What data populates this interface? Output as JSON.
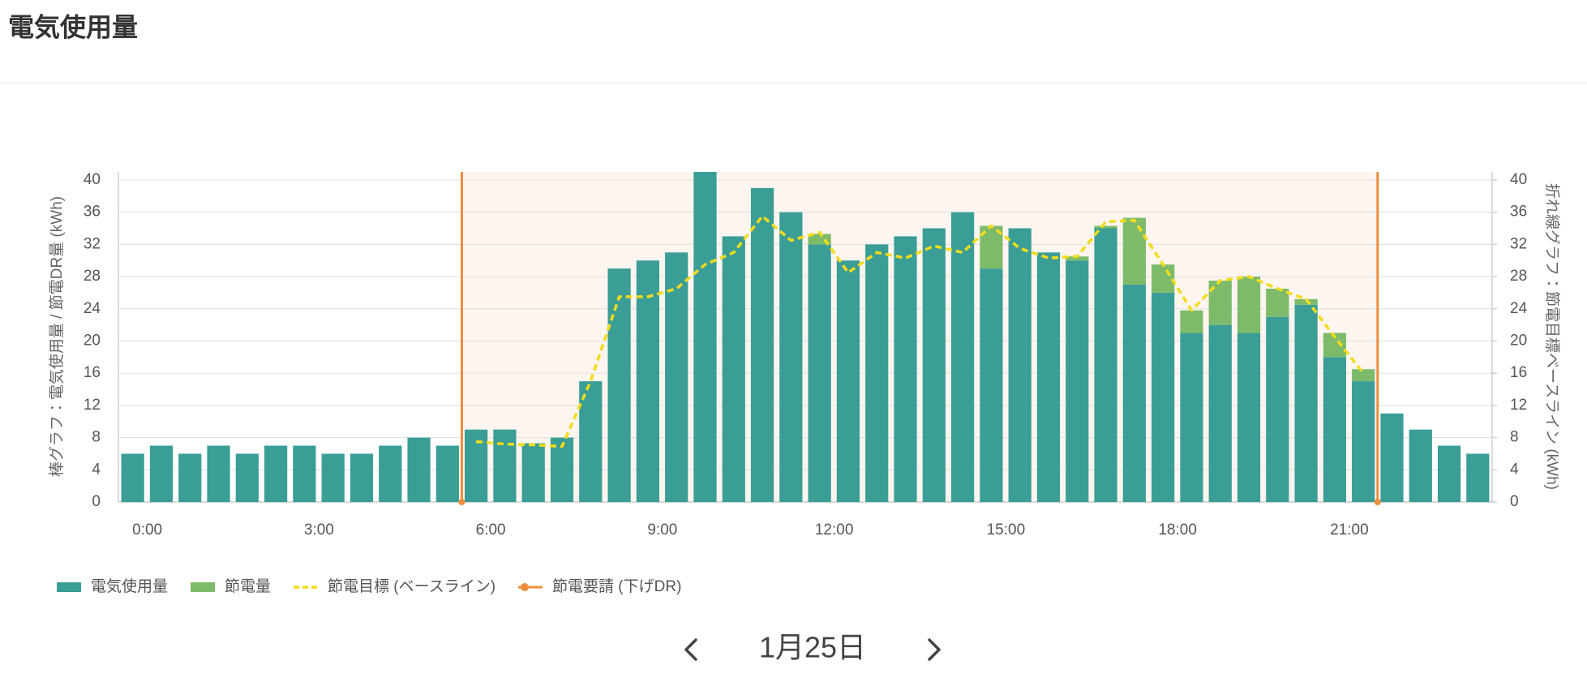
{
  "chart_data": {
    "type": "bar",
    "title": "電気使用量",
    "ylabel": "棒グラフ：電気使用量 / 節電DR量 (kWh)",
    "y2label": "折れ線グラフ：節電目標ベースライン (kWh)",
    "date": "1月25日",
    "categories": [
      "0:00",
      null,
      null,
      null,
      null,
      null,
      "3:00",
      null,
      null,
      null,
      null,
      null,
      "6:00",
      null,
      null,
      null,
      null,
      null,
      "9:00",
      null,
      null,
      null,
      null,
      null,
      "12:00",
      null,
      null,
      null,
      null,
      null,
      "15:00",
      null,
      null,
      null,
      null,
      null,
      "18:00",
      null,
      null,
      null,
      null,
      null,
      "21:00",
      null,
      null,
      null,
      null,
      null
    ],
    "series": [
      {
        "name": "電気使用量",
        "type": "bar",
        "color": "#3a9e96",
        "values": [
          6,
          7,
          6,
          7,
          6,
          7,
          7,
          6,
          6,
          7,
          8,
          7,
          9,
          9,
          7.3,
          8,
          15,
          29,
          30,
          31,
          41,
          33,
          39,
          36,
          32,
          30,
          32,
          33,
          34,
          36,
          29,
          34,
          31,
          30,
          34,
          27,
          26,
          21,
          22,
          21,
          23,
          24.5,
          18,
          15,
          11,
          9,
          7,
          6
        ]
      },
      {
        "name": "節電量",
        "type": "bar",
        "stack": true,
        "color": "#7dbb6a",
        "values": [
          0,
          0,
          0,
          0,
          0,
          0,
          0,
          0,
          0,
          0,
          0,
          0,
          0,
          0,
          0,
          0,
          0,
          0,
          0,
          0,
          0,
          0,
          0,
          0,
          1.3,
          0,
          0,
          0,
          0,
          0,
          5.3,
          0,
          0,
          0.5,
          0.3,
          8.3,
          3.5,
          2.8,
          5.5,
          7,
          3.5,
          0.7,
          3,
          1.5,
          0,
          0,
          0,
          0
        ]
      },
      {
        "name": "節電目標 (ベースライン)",
        "type": "line",
        "axis": "y2",
        "color": "#f2dc1c",
        "values": [
          null,
          null,
          null,
          null,
          null,
          null,
          null,
          null,
          null,
          null,
          null,
          null,
          7.5,
          7.2,
          7.1,
          6.9,
          15,
          25.5,
          25.5,
          26.5,
          29.5,
          31,
          35.5,
          32.5,
          33.5,
          28.5,
          31,
          30.3,
          31.8,
          31,
          34.3,
          31.5,
          30.3,
          30.5,
          34.8,
          35,
          29.5,
          23.8,
          27.5,
          28,
          26.5,
          25.2,
          20.5,
          16,
          null,
          null,
          null,
          null
        ]
      },
      {
        "name": "節電要請 (下げDR)",
        "type": "dr",
        "color": "#ee8e3e",
        "values": [
          null,
          null,
          null,
          null,
          null,
          null,
          null,
          null,
          null,
          null,
          null,
          null,
          41,
          null,
          null,
          null,
          null,
          null,
          null,
          null,
          null,
          null,
          null,
          null,
          null,
          null,
          null,
          null,
          null,
          null,
          null,
          null,
          null,
          null,
          null,
          null,
          null,
          null,
          null,
          null,
          null,
          null,
          null,
          41,
          null,
          null,
          null,
          null
        ]
      }
    ],
    "ylim": [
      0,
      41
    ],
    "yticks": [
      0,
      4,
      8,
      12,
      16,
      20,
      24,
      28,
      32,
      36,
      40
    ],
    "y2lim": [
      0,
      41
    ],
    "y2ticks": [
      0,
      4,
      8,
      12,
      16,
      20,
      24,
      28,
      32,
      36,
      40
    ],
    "grid": true,
    "legend": "bottom-left"
  }
}
